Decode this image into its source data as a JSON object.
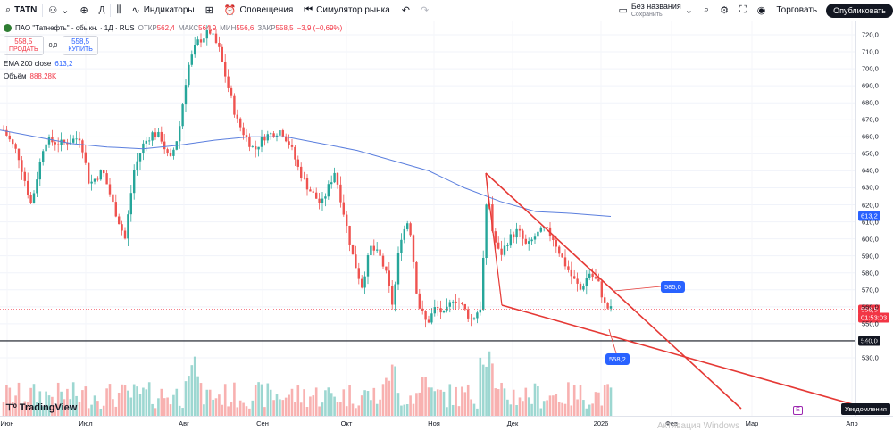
{
  "toolbar": {
    "symbol": "TATN",
    "interval": "Д",
    "indicators": "Индикаторы",
    "alerts": "Оповещения",
    "replay": "Симулятор рынка",
    "layout_name": "Без названия",
    "layout_status": "Сохранить",
    "trade": "Торговать",
    "publish": "Опубликовать"
  },
  "legend": {
    "title": "ПАО \"Татнефть\" - обыкн. · 1Д · RUS",
    "open_label": "ОТКР",
    "open": "562,4",
    "high_label": "МАКС",
    "high": "564,9",
    "low_label": "МИН",
    "low": "556,6",
    "close_label": "ЗАКР",
    "close": "558,5",
    "change": "−3,9 (−0,69%)",
    "sell_price": "558,5",
    "sell_label": "ПРОДАТЬ",
    "spread": "0,0",
    "buy_price": "558,5",
    "buy_label": "КУПИТЬ",
    "ema_label": "EMA 200 close",
    "ema_value": "613,2",
    "volume_label": "Объём",
    "volume_value": "888,28K"
  },
  "price_axis": {
    "ticks": [
      "720,0",
      "710,0",
      "700,0",
      "690,0",
      "680,0",
      "670,0",
      "660,0",
      "650,0",
      "640,0",
      "630,0",
      "620,0",
      "610,0",
      "600,0",
      "590,0",
      "580,0",
      "570,0",
      "560,0",
      "550,0",
      "540,0",
      "530,0"
    ],
    "ema_badge": "613,2",
    "last_price": "558,5",
    "countdown": "01:53:03",
    "level_badge": "540,0"
  },
  "time_axis": {
    "labels": [
      "Июн",
      "Июл",
      "Авг",
      "Сен",
      "Окт",
      "Ноя",
      "Дек",
      "2026",
      "Фев",
      "Мар",
      "Апр"
    ]
  },
  "callouts": {
    "upper": "585,0",
    "lower": "558,2"
  },
  "branding": {
    "logo": "TradingView"
  },
  "notifications": "Уведомления",
  "e_badge": "E",
  "watermark": "Активация Windows",
  "chart_data": {
    "type": "candlestick",
    "symbol": "TATN",
    "ylim": [
      525,
      728
    ],
    "x_labels": [
      "Июн",
      "Июл",
      "Авг",
      "Сен",
      "Окт",
      "Ноя",
      "Дек",
      "2026",
      "Фев",
      "Мар",
      "Апр"
    ],
    "last_close": 558.5,
    "ema200_last": 613.2,
    "horizontal_level": 540.0,
    "trendline_labels": [
      585.0,
      558.2
    ],
    "colors": {
      "up": "#26a69a",
      "down": "#ef5350",
      "ema": "#5b7fde",
      "trend": "#e53935"
    }
  }
}
